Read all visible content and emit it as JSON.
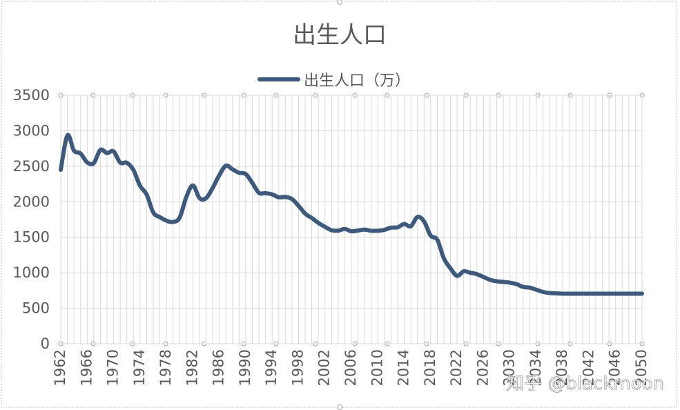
{
  "chart_data": {
    "type": "line",
    "title": "出生人口",
    "xlabel": "",
    "ylabel": "",
    "ylim": [
      0,
      3500
    ],
    "yticks": [
      0,
      500,
      1000,
      1500,
      2000,
      2500,
      3000,
      3500
    ],
    "xlim": [
      1962,
      2050
    ],
    "xticks": [
      1962,
      1966,
      1970,
      1974,
      1978,
      1982,
      1986,
      1990,
      1994,
      1998,
      2002,
      2006,
      2010,
      2014,
      2018,
      2022,
      2026,
      2030,
      2034,
      2038,
      2042,
      2046,
      2050
    ],
    "grid": true,
    "legend_position": "top",
    "series_color": "#3b5a7e",
    "series": [
      {
        "name": "出生人口（万）",
        "x": [
          1962,
          1963,
          1964,
          1965,
          1966,
          1967,
          1968,
          1969,
          1970,
          1971,
          1972,
          1973,
          1974,
          1975,
          1976,
          1977,
          1978,
          1979,
          1980,
          1981,
          1982,
          1983,
          1984,
          1985,
          1986,
          1987,
          1988,
          1989,
          1990,
          1991,
          1992,
          1993,
          1994,
          1995,
          1996,
          1997,
          1998,
          1999,
          2000,
          2001,
          2002,
          2003,
          2004,
          2005,
          2006,
          2007,
          2008,
          2009,
          2010,
          2011,
          2012,
          2013,
          2014,
          2015,
          2016,
          2017,
          2018,
          2019,
          2020,
          2021,
          2022,
          2023,
          2024,
          2025,
          2026,
          2027,
          2028,
          2029,
          2030,
          2031,
          2032,
          2033,
          2034,
          2035,
          2036,
          2037,
          2038,
          2039,
          2040,
          2041,
          2042,
          2043,
          2044,
          2045,
          2046,
          2047,
          2048,
          2049,
          2050
        ],
        "values": [
          2450,
          2934,
          2721,
          2679,
          2554,
          2543,
          2731,
          2686,
          2710,
          2551,
          2550,
          2447,
          2226,
          2102,
          1849,
          1783,
          1733,
          1715,
          1776,
          2064,
          2230,
          2052,
          2050,
          2196,
          2374,
          2508,
          2457,
          2407,
          2391,
          2265,
          2125,
          2120,
          2104,
          2063,
          2067,
          2038,
          1942,
          1834,
          1771,
          1702,
          1647,
          1599,
          1593,
          1617,
          1584,
          1594,
          1608,
          1591,
          1592,
          1604,
          1635,
          1640,
          1687,
          1655,
          1786,
          1723,
          1523,
          1465,
          1202,
          1062,
          956,
          1020,
          1000,
          980,
          940,
          900,
          880,
          870,
          860,
          840,
          800,
          790,
          760,
          730,
          715,
          710,
          705,
          705,
          705,
          705,
          705,
          705,
          705,
          705,
          705,
          705,
          705,
          705,
          705
        ]
      }
    ]
  },
  "watermark": "知乎 @blackmoon"
}
